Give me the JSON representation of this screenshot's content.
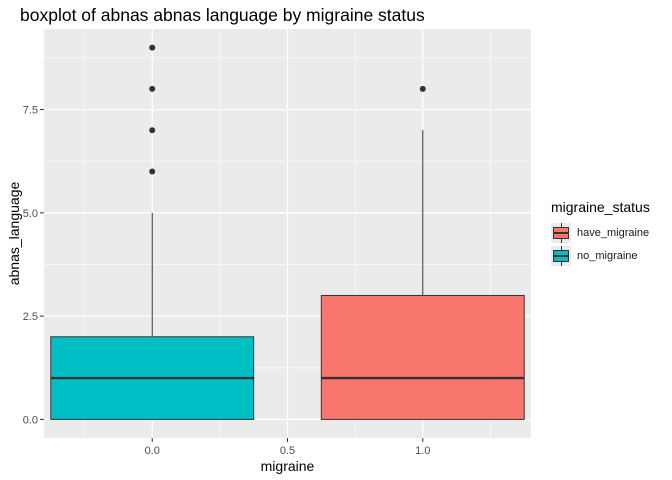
{
  "chart_data": {
    "type": "boxplot",
    "title": "boxplot of abnas abnas language by migraine status",
    "xlabel": "migraine",
    "ylabel": "abnas_language",
    "xlim": [
      -0.4,
      1.4
    ],
    "ylim": [
      -0.45,
      9.45
    ],
    "x_ticks": [
      {
        "value": 0.0,
        "label": "0.0"
      },
      {
        "value": 0.5,
        "label": "0.5"
      },
      {
        "value": 1.0,
        "label": "1.0"
      }
    ],
    "y_ticks": [
      {
        "value": 0.0,
        "label": "0.0"
      },
      {
        "value": 2.5,
        "label": "2.5"
      },
      {
        "value": 5.0,
        "label": "5.0"
      },
      {
        "value": 7.5,
        "label": "7.5"
      }
    ],
    "grid": true,
    "legend_position": "right",
    "legend_title": "migraine_status",
    "legend": [
      {
        "label": "have_migraine",
        "color": "#F8766D"
      },
      {
        "label": "no_migraine",
        "color": "#00BFC4"
      }
    ],
    "boxes": [
      {
        "x": 0.0,
        "group": "no_migraine",
        "color": "#00BFC4",
        "min": 0,
        "q1": 0,
        "median": 1,
        "q3": 2,
        "max": 5,
        "outliers": [
          6,
          7,
          8,
          9
        ],
        "width": 0.75
      },
      {
        "x": 1.0,
        "group": "have_migraine",
        "color": "#F8766D",
        "min": 0,
        "q1": 0,
        "median": 1,
        "q3": 3,
        "max": 7,
        "outliers": [
          8
        ],
        "width": 0.75
      }
    ]
  }
}
